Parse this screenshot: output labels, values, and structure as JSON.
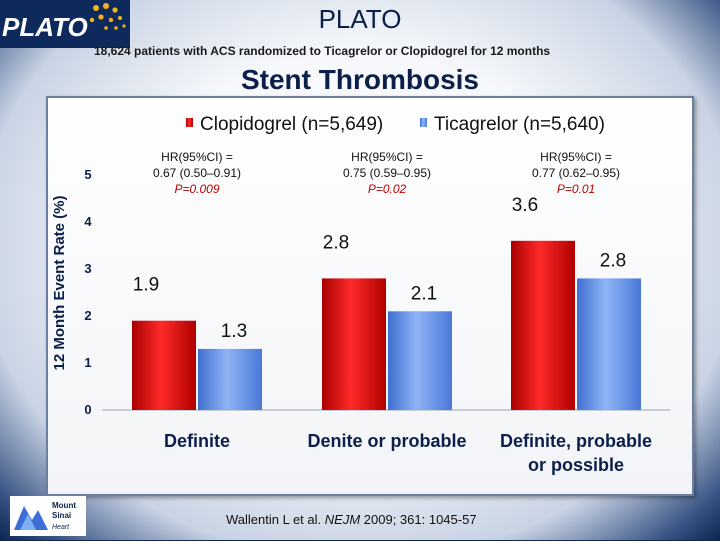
{
  "header": {
    "logo_text": "PLATO",
    "title": "PLATO",
    "subtitle": "18,624 patients with ACS randomized to Ticagrelor or Clopidogrel for 12 months",
    "main_title": "Stent Thrombosis"
  },
  "footer": {
    "reference_author": "Wallentin L et al.",
    "reference_journal": "NEJM",
    "reference_citation": "2009; 361: 1045-57",
    "hospital_logo_lines": [
      "Mount",
      "Sinai",
      "Heart"
    ]
  },
  "chart_data": {
    "type": "bar",
    "categories": [
      "Definite",
      "Denite or probable",
      "Definite, probable or possible"
    ],
    "category_lines": [
      [
        "Definite"
      ],
      [
        "Denite or probable"
      ],
      [
        "Definite, probable",
        "or possible"
      ]
    ],
    "series": [
      {
        "name": "Clopidogrel (n=5,649)",
        "values": [
          1.9,
          2.8,
          3.6
        ],
        "labels": [
          "1.9",
          "2.8",
          "3.6"
        ],
        "color": "#e01010"
      },
      {
        "name": "Ticagrelor (n=5,640)",
        "values": [
          1.3,
          2.1,
          2.8
        ],
        "labels": [
          "1.3",
          "2.1",
          "2.8"
        ],
        "color": "#5b8ee6"
      }
    ],
    "ylabel": "12 Month Event Rate (%)",
    "ylim": [
      0,
      5
    ],
    "yticks": [
      0,
      1,
      2,
      3,
      4,
      5
    ],
    "legend_position": "top",
    "annotations": [
      {
        "hr": "HR(95%CI) =",
        "ci": "0.67 (0.50–0.91)",
        "p": "P=0.009"
      },
      {
        "hr": "HR(95%CI) =",
        "ci": "0.75 (0.59–0.95)",
        "p": "P=0.02"
      },
      {
        "hr": "HR(95%CI) =",
        "ci": "0.77 (0.62–0.95)",
        "p": "P=0.01"
      }
    ]
  }
}
